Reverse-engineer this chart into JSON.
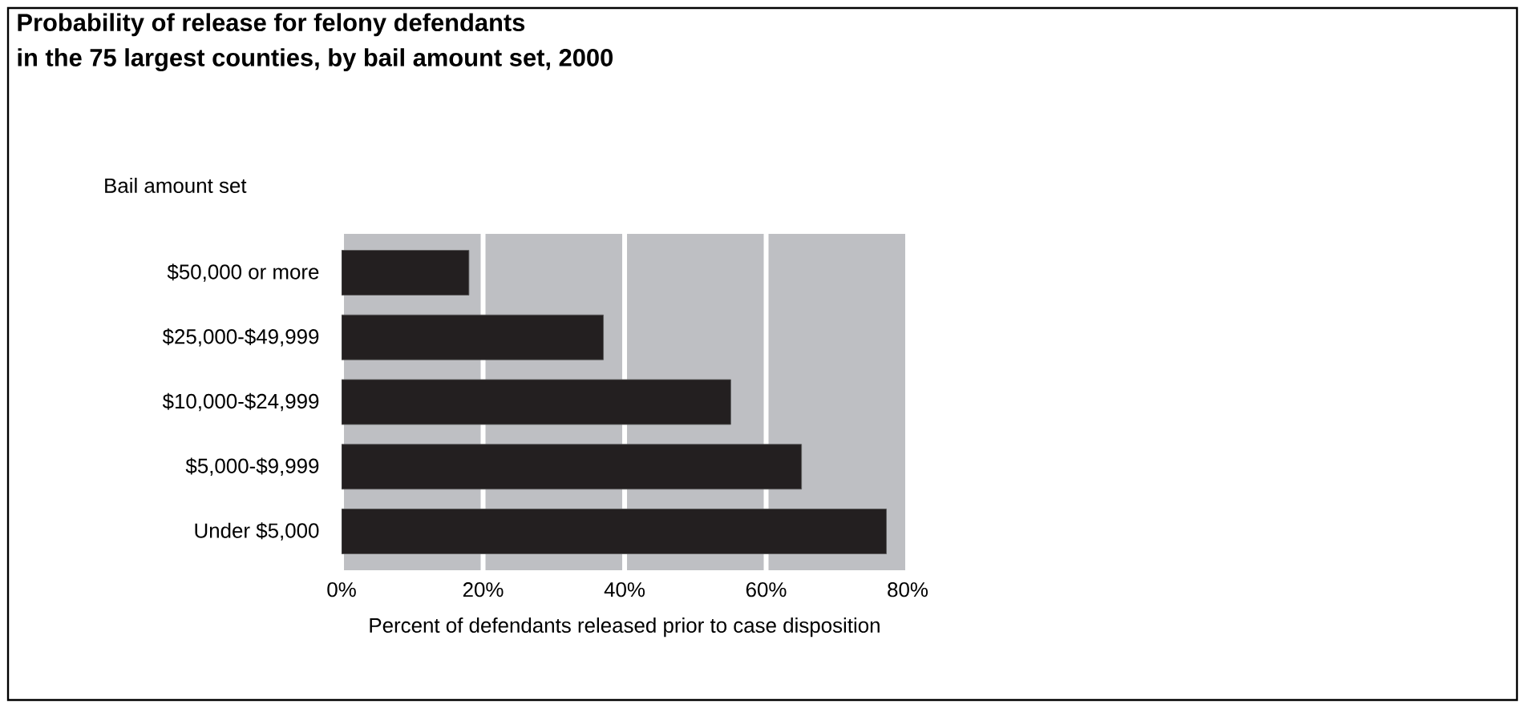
{
  "chart_data": {
    "type": "bar",
    "orientation": "horizontal",
    "title": "Probability of release for felony defendants\nin the 75 largest counties, by bail amount set, 2000",
    "ylabel": "Bail amount set",
    "xlabel": "Percent of defendants released prior to case disposition",
    "categories": [
      "$50,000 or more",
      "$25,000-$49,999",
      "$10,000-$24,999",
      "$5,000-$9,999",
      "Under $5,000"
    ],
    "values": [
      18,
      37,
      55,
      65,
      77
    ],
    "color": "#231f20",
    "xlim": [
      0,
      80
    ],
    "xticks": [
      {
        "value": 0,
        "label": "0%"
      },
      {
        "value": 20,
        "label": "20%"
      },
      {
        "value": 40,
        "label": "40%"
      },
      {
        "value": 60,
        "label": "60%"
      },
      {
        "value": 80,
        "label": "80%"
      }
    ],
    "grid": "x"
  }
}
